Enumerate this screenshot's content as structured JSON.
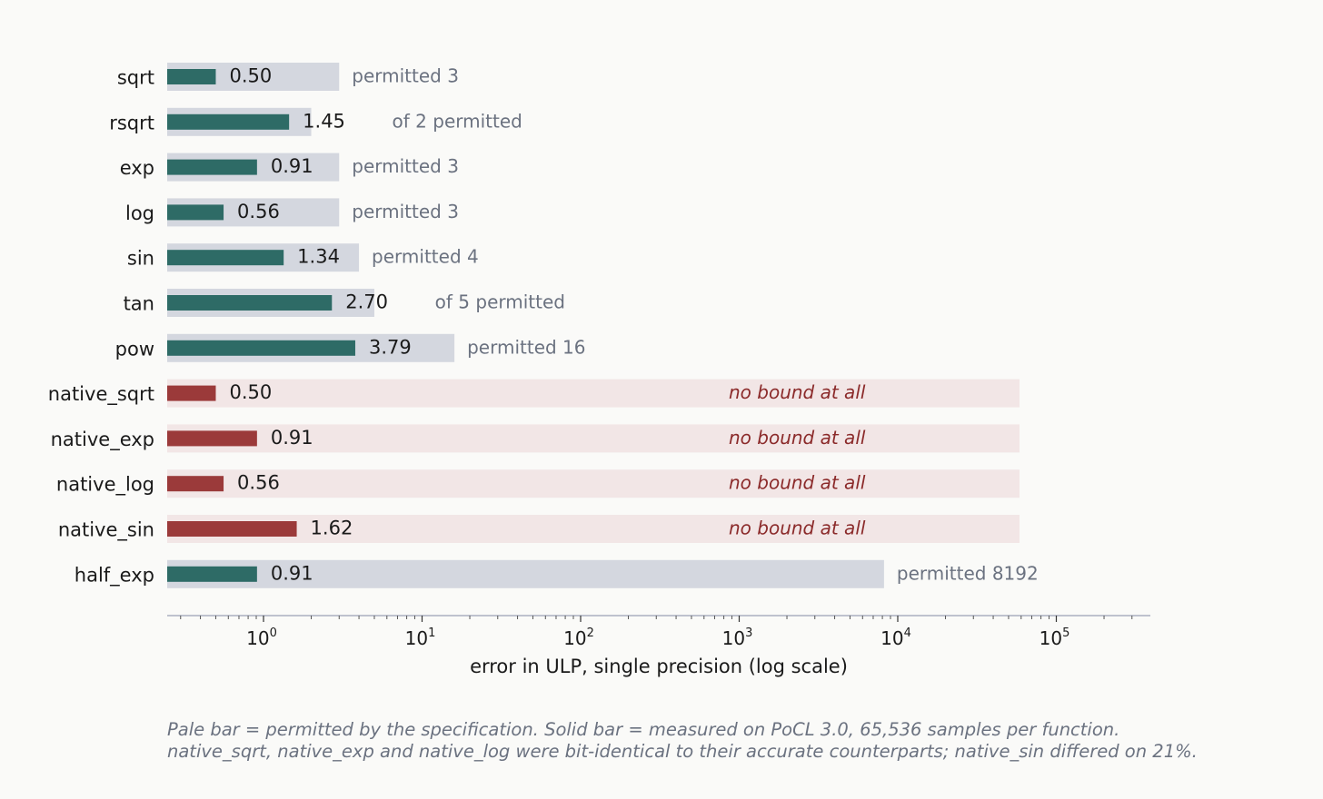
{
  "chart_data": {
    "type": "bar",
    "orientation": "horizontal",
    "xscale": "log",
    "xlim": [
      0.25,
      420000
    ],
    "xlabel": "error in ULP, single precision (log scale)",
    "xticks": [
      {
        "base": "10",
        "exp": "0",
        "value": 1
      },
      {
        "base": "10",
        "exp": "1",
        "value": 10
      },
      {
        "base": "10",
        "exp": "2",
        "value": 100
      },
      {
        "base": "10",
        "exp": "3",
        "value": 1000
      },
      {
        "base": "10",
        "exp": "4",
        "value": 10000
      },
      {
        "base": "10",
        "exp": "5",
        "value": 100000
      }
    ],
    "categories": [
      "sqrt",
      "rsqrt",
      "exp",
      "log",
      "sin",
      "tan",
      "pow",
      "native_sqrt",
      "native_exp",
      "native_log",
      "native_sin",
      "half_exp"
    ],
    "measured": [
      0.5,
      1.45,
      0.91,
      0.56,
      1.34,
      2.7,
      3.79,
      0.5,
      0.91,
      0.56,
      1.62,
      0.91
    ],
    "measured_labels": [
      "0.50",
      "1.45",
      "0.91",
      "0.56",
      "1.34",
      "2.70",
      "3.79",
      "0.50",
      "0.91",
      "0.56",
      "1.62",
      "0.91"
    ],
    "permitted": [
      3,
      2,
      3,
      3,
      4,
      5,
      16,
      null,
      null,
      null,
      null,
      8192
    ],
    "notes": [
      "permitted 3",
      "of 2 permitted",
      "permitted 3",
      "permitted 3",
      "permitted 4",
      "of 5 permitted",
      "permitted 16",
      "no bound at all",
      "no bound at all",
      "no bound at all",
      "no bound at all",
      "permitted 8192"
    ],
    "unbounded": [
      false,
      false,
      false,
      false,
      false,
      false,
      false,
      true,
      true,
      true,
      true,
      false
    ],
    "colors": {
      "measured_bounded": "#2e6b66",
      "measured_native": "#9b3a3a",
      "permitted_bg": "#d4d7df",
      "unbounded_bg": "#f2e6e6",
      "note": "#6b7280",
      "note_unbounded": "#8b2a2a",
      "axis": "#a9b0bf"
    },
    "grid": false
  },
  "caption": {
    "line1": "Pale bar = permitted by the specification.  Solid bar = measured on PoCL 3.0, 65,536 samples per function.",
    "line2": "native_sqrt, native_exp and native_log were bit-identical to their accurate counterparts; native_sin differed on 21%."
  }
}
